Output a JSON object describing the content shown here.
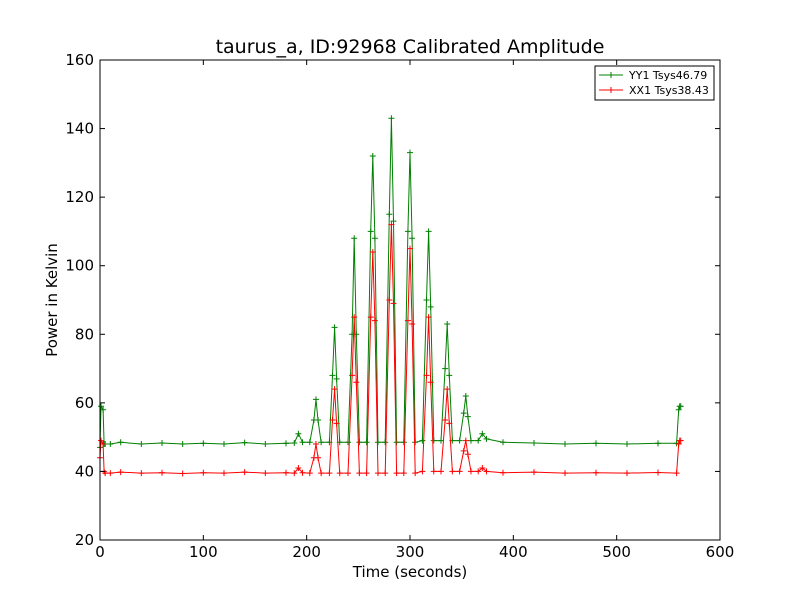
{
  "chart_data": {
    "type": "line",
    "title": "taurus_a, ID:92968 Calibrated Amplitude",
    "xlabel": "Time (seconds)",
    "ylabel": "Power in Kelvin",
    "xlim": [
      0,
      600
    ],
    "ylim": [
      20,
      160
    ],
    "xticks": [
      "0",
      "100",
      "200",
      "300",
      "400",
      "500",
      "600"
    ],
    "yticks": [
      "20",
      "40",
      "60",
      "80",
      "100",
      "120",
      "140",
      "160"
    ],
    "grid": false,
    "legend_position": "top-right",
    "series": [
      {
        "name": "YY1 Tsys46.79",
        "color": "#008000",
        "marker": "+",
        "points": [
          [
            0,
            47
          ],
          [
            1,
            59
          ],
          [
            3,
            58
          ],
          [
            4,
            48
          ],
          [
            5,
            48
          ],
          [
            10,
            48
          ],
          [
            20,
            48.5
          ],
          [
            40,
            48
          ],
          [
            60,
            48.3
          ],
          [
            80,
            48
          ],
          [
            100,
            48.2
          ],
          [
            120,
            48
          ],
          [
            140,
            48.4
          ],
          [
            160,
            48
          ],
          [
            180,
            48.2
          ],
          [
            188,
            48.3
          ],
          [
            192,
            51
          ],
          [
            196,
            48.5
          ],
          [
            203,
            48.5
          ],
          [
            207,
            55
          ],
          [
            209,
            61
          ],
          [
            211,
            55
          ],
          [
            214,
            48.5
          ],
          [
            222,
            48.5
          ],
          [
            225,
            68
          ],
          [
            227,
            82
          ],
          [
            229,
            67
          ],
          [
            232,
            48.5
          ],
          [
            240,
            48.5
          ],
          [
            244,
            80
          ],
          [
            246,
            108
          ],
          [
            248,
            80
          ],
          [
            251,
            48.5
          ],
          [
            258,
            48.5
          ],
          [
            262,
            110
          ],
          [
            264,
            132
          ],
          [
            266,
            108
          ],
          [
            269,
            48.5
          ],
          [
            276,
            48.5
          ],
          [
            280,
            115
          ],
          [
            282,
            143
          ],
          [
            284,
            113
          ],
          [
            287,
            48.5
          ],
          [
            294,
            48.5
          ],
          [
            298,
            110
          ],
          [
            300,
            133
          ],
          [
            302,
            108
          ],
          [
            305,
            48.5
          ],
          [
            312,
            49
          ],
          [
            316,
            90
          ],
          [
            318,
            110
          ],
          [
            320,
            88
          ],
          [
            323,
            49
          ],
          [
            330,
            49
          ],
          [
            334,
            70
          ],
          [
            336,
            83
          ],
          [
            338,
            68
          ],
          [
            341,
            49
          ],
          [
            348,
            49
          ],
          [
            352,
            57
          ],
          [
            354,
            62
          ],
          [
            356,
            56
          ],
          [
            359,
            49
          ],
          [
            366,
            49
          ],
          [
            370,
            51
          ],
          [
            374,
            49.5
          ],
          [
            390,
            48.5
          ],
          [
            420,
            48.3
          ],
          [
            450,
            48
          ],
          [
            480,
            48.2
          ],
          [
            510,
            48
          ],
          [
            540,
            48.2
          ],
          [
            558,
            48.2
          ],
          [
            560,
            58
          ],
          [
            561,
            59
          ],
          [
            562,
            59
          ]
        ]
      },
      {
        "name": "XX1 Tsys38.43",
        "color": "#ff0000",
        "marker": "+",
        "points": [
          [
            0,
            44
          ],
          [
            1,
            49
          ],
          [
            3,
            48
          ],
          [
            4,
            40
          ],
          [
            5,
            39.5
          ],
          [
            10,
            39.5
          ],
          [
            20,
            39.8
          ],
          [
            40,
            39.5
          ],
          [
            60,
            39.6
          ],
          [
            80,
            39.4
          ],
          [
            100,
            39.6
          ],
          [
            120,
            39.5
          ],
          [
            140,
            39.8
          ],
          [
            160,
            39.5
          ],
          [
            180,
            39.6
          ],
          [
            188,
            39.5
          ],
          [
            192,
            41
          ],
          [
            196,
            39.6
          ],
          [
            203,
            39.5
          ],
          [
            207,
            44
          ],
          [
            209,
            48
          ],
          [
            211,
            44
          ],
          [
            214,
            39.5
          ],
          [
            222,
            39.5
          ],
          [
            225,
            55
          ],
          [
            227,
            64
          ],
          [
            229,
            54
          ],
          [
            232,
            39.5
          ],
          [
            240,
            39.5
          ],
          [
            244,
            68
          ],
          [
            246,
            85
          ],
          [
            248,
            66
          ],
          [
            251,
            39.5
          ],
          [
            258,
            39.5
          ],
          [
            262,
            85
          ],
          [
            264,
            104
          ],
          [
            266,
            84
          ],
          [
            269,
            39.5
          ],
          [
            276,
            39.5
          ],
          [
            280,
            90
          ],
          [
            282,
            112
          ],
          [
            284,
            89
          ],
          [
            287,
            39.5
          ],
          [
            294,
            39.5
          ],
          [
            298,
            84
          ],
          [
            300,
            105
          ],
          [
            302,
            83
          ],
          [
            305,
            39.5
          ],
          [
            312,
            40
          ],
          [
            316,
            68
          ],
          [
            318,
            85
          ],
          [
            320,
            66
          ],
          [
            323,
            40
          ],
          [
            330,
            40
          ],
          [
            334,
            55
          ],
          [
            336,
            64
          ],
          [
            338,
            54
          ],
          [
            341,
            40
          ],
          [
            348,
            40
          ],
          [
            352,
            46
          ],
          [
            354,
            49
          ],
          [
            356,
            45
          ],
          [
            359,
            40
          ],
          [
            366,
            40
          ],
          [
            370,
            41
          ],
          [
            374,
            40
          ],
          [
            390,
            39.6
          ],
          [
            420,
            39.8
          ],
          [
            450,
            39.5
          ],
          [
            480,
            39.6
          ],
          [
            510,
            39.5
          ],
          [
            540,
            39.7
          ],
          [
            558,
            39.5
          ],
          [
            560,
            48
          ],
          [
            561,
            49
          ],
          [
            562,
            49
          ]
        ]
      }
    ]
  }
}
